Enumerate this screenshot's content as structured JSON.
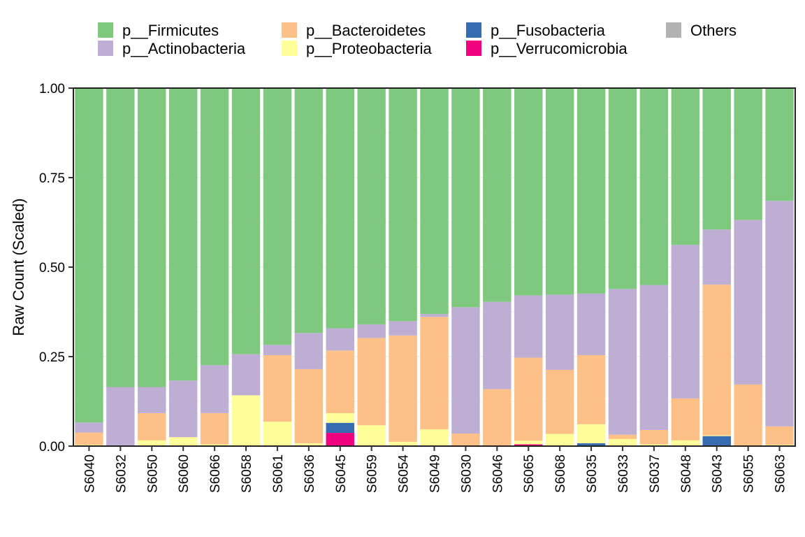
{
  "chart_data": {
    "type": "bar",
    "stacked": true,
    "title": "",
    "xlabel": "",
    "ylabel": "Raw Count (Scaled)",
    "ylim": [
      0,
      1
    ],
    "yticks": [
      "0.00",
      "0.25",
      "0.50",
      "0.75",
      "1.00"
    ],
    "legend_position": "top",
    "categories": [
      "S6040",
      "S6032",
      "S6050",
      "S6060",
      "S6066",
      "S6058",
      "S6061",
      "S6036",
      "S6045",
      "S6059",
      "S6054",
      "S6049",
      "S6030",
      "S6046",
      "S6065",
      "S6068",
      "S6035",
      "S6033",
      "S6037",
      "S6048",
      "S6043",
      "S6055",
      "S6063"
    ],
    "series": [
      {
        "name": "p__Verrucomicrobia",
        "color": "#f0027f",
        "values": [
          0,
          0,
          0,
          0,
          0,
          0,
          0,
          0,
          0.037,
          0,
          0,
          0,
          0,
          0,
          0.005,
          0,
          0,
          0,
          0,
          0,
          0,
          0,
          0
        ]
      },
      {
        "name": "p__Fusobacteria",
        "color": "#386cb0",
        "values": [
          0,
          0,
          0,
          0,
          0,
          0,
          0,
          0,
          0.028,
          0,
          0,
          0,
          0,
          0,
          0,
          0,
          0.008,
          0,
          0,
          0,
          0.028,
          0,
          0
        ]
      },
      {
        "name": "p__Proteobacteria",
        "color": "#ffff99",
        "values": [
          0.003,
          0.002,
          0.016,
          0.025,
          0.005,
          0.142,
          0.068,
          0.008,
          0.027,
          0.058,
          0.012,
          0.047,
          0.002,
          0.002,
          0.01,
          0.034,
          0.053,
          0.02,
          0.005,
          0.016,
          0.002,
          0.002,
          0.003
        ]
      },
      {
        "name": "p__Bacteroidetes",
        "color": "#fdc086",
        "values": [
          0.035,
          0,
          0.076,
          0,
          0.087,
          0,
          0.186,
          0.207,
          0.175,
          0.244,
          0.297,
          0.314,
          0.033,
          0.157,
          0.232,
          0.179,
          0.193,
          0.012,
          0.04,
          0.117,
          0.421,
          0.17,
          0.052
        ]
      },
      {
        "name": "p__Actinobacteria",
        "color": "#beaed4",
        "values": [
          0.028,
          0.163,
          0.073,
          0.158,
          0.134,
          0.115,
          0.029,
          0.101,
          0.062,
          0.038,
          0.04,
          0.008,
          0.353,
          0.244,
          0.174,
          0.21,
          0.172,
          0.407,
          0.405,
          0.429,
          0.154,
          0.46,
          0.63
        ]
      },
      {
        "name": "p__Firmicutes",
        "color": "#7fc97f",
        "values": [
          0.934,
          0.835,
          0.835,
          0.817,
          0.774,
          0.743,
          0.717,
          0.684,
          0.671,
          0.66,
          0.651,
          0.631,
          0.612,
          0.597,
          0.579,
          0.577,
          0.574,
          0.561,
          0.55,
          0.438,
          0.395,
          0.368,
          0.315
        ]
      },
      {
        "name": "Others",
        "color": "#b3b3b3",
        "values": [
          0,
          0,
          0,
          0,
          0,
          0,
          0,
          0,
          0,
          0,
          0,
          0,
          0,
          0,
          0,
          0,
          0,
          0,
          0,
          0,
          0,
          0,
          0
        ]
      }
    ],
    "legend": [
      {
        "name": "p__Firmicutes",
        "color": "#7fc97f"
      },
      {
        "name": "p__Actinobacteria",
        "color": "#beaed4"
      },
      {
        "name": "p__Bacteroidetes",
        "color": "#fdc086"
      },
      {
        "name": "p__Proteobacteria",
        "color": "#ffff99"
      },
      {
        "name": "p__Fusobacteria",
        "color": "#386cb0"
      },
      {
        "name": "p__Verrucomicrobia",
        "color": "#f0027f"
      },
      {
        "name": "Others",
        "color": "#b3b3b3"
      }
    ]
  }
}
